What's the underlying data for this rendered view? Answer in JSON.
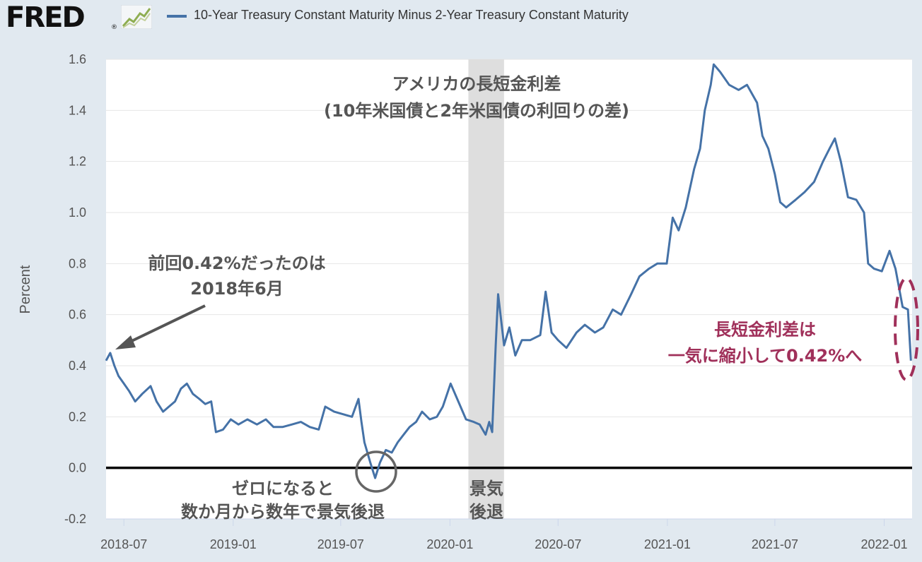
{
  "header": {
    "logo": "FRED",
    "logo_mark": "®",
    "legend_label": "10-Year Treasury Constant Maturity Minus 2-Year Treasury Constant Maturity",
    "legend_color": "#4572a7"
  },
  "annotations": {
    "title_line1": "アメリカの長短金利差",
    "title_line2": "(10年米国債と2年米国債の利回りの差)",
    "previous_line1": "前回0.42%だったのは",
    "previous_line2": "2018年6月",
    "zero_line1": "ゼロになると",
    "zero_line2": "数か月から数年で景気後退",
    "recession_line1": "景気",
    "recession_line2": "後退",
    "current_line1": "長短金利差は",
    "current_line2": "一気に縮小して0.42%へ",
    "current_color": "#a0305a"
  },
  "chart_data": {
    "type": "line",
    "ylabel": "Percent",
    "ylim": [
      -0.2,
      1.6
    ],
    "yticks": [
      "1.6",
      "1.4",
      "1.2",
      "1.0",
      "0.8",
      "0.6",
      "0.4",
      "0.2",
      "0.0",
      "-0.2"
    ],
    "xticks": [
      "2018-07",
      "2019-01",
      "2019-07",
      "2020-01",
      "2020-07",
      "2021-01",
      "2021-07",
      "2022-01"
    ],
    "recession_shading": [
      "2020-02",
      "2020-04"
    ],
    "series": [
      {
        "color": "#4572a7",
        "points": [
          [
            "2018-06-01",
            0.42
          ],
          [
            "2018-06-08",
            0.45
          ],
          [
            "2018-06-15",
            0.4
          ],
          [
            "2018-06-22",
            0.36
          ],
          [
            "2018-07-01",
            0.33
          ],
          [
            "2018-07-10",
            0.3
          ],
          [
            "2018-07-20",
            0.26
          ],
          [
            "2018-08-01",
            0.29
          ],
          [
            "2018-08-15",
            0.32
          ],
          [
            "2018-08-25",
            0.26
          ],
          [
            "2018-09-05",
            0.22
          ],
          [
            "2018-09-15",
            0.24
          ],
          [
            "2018-09-25",
            0.26
          ],
          [
            "2018-10-05",
            0.31
          ],
          [
            "2018-10-15",
            0.33
          ],
          [
            "2018-10-25",
            0.29
          ],
          [
            "2018-11-05",
            0.27
          ],
          [
            "2018-11-15",
            0.25
          ],
          [
            "2018-11-25",
            0.26
          ],
          [
            "2018-12-03",
            0.14
          ],
          [
            "2018-12-15",
            0.15
          ],
          [
            "2018-12-28",
            0.19
          ],
          [
            "2019-01-10",
            0.17
          ],
          [
            "2019-01-25",
            0.19
          ],
          [
            "2019-02-10",
            0.17
          ],
          [
            "2019-02-25",
            0.19
          ],
          [
            "2019-03-10",
            0.16
          ],
          [
            "2019-03-25",
            0.16
          ],
          [
            "2019-04-10",
            0.17
          ],
          [
            "2019-04-25",
            0.18
          ],
          [
            "2019-05-10",
            0.16
          ],
          [
            "2019-05-25",
            0.15
          ],
          [
            "2019-06-05",
            0.24
          ],
          [
            "2019-06-20",
            0.22
          ],
          [
            "2019-07-05",
            0.21
          ],
          [
            "2019-07-20",
            0.2
          ],
          [
            "2019-07-31",
            0.27
          ],
          [
            "2019-08-05",
            0.18
          ],
          [
            "2019-08-10",
            0.1
          ],
          [
            "2019-08-20",
            0.02
          ],
          [
            "2019-08-28",
            -0.04
          ],
          [
            "2019-09-05",
            0.02
          ],
          [
            "2019-09-15",
            0.07
          ],
          [
            "2019-09-25",
            0.06
          ],
          [
            "2019-10-05",
            0.1
          ],
          [
            "2019-10-15",
            0.13
          ],
          [
            "2019-10-25",
            0.16
          ],
          [
            "2019-11-05",
            0.18
          ],
          [
            "2019-11-15",
            0.22
          ],
          [
            "2019-11-28",
            0.19
          ],
          [
            "2019-12-10",
            0.2
          ],
          [
            "2019-12-20",
            0.24
          ],
          [
            "2020-01-02",
            0.33
          ],
          [
            "2020-01-15",
            0.26
          ],
          [
            "2020-01-28",
            0.19
          ],
          [
            "2020-02-10",
            0.18
          ],
          [
            "2020-02-20",
            0.17
          ],
          [
            "2020-03-01",
            0.13
          ],
          [
            "2020-03-07",
            0.18
          ],
          [
            "2020-03-12",
            0.14
          ],
          [
            "2020-03-18",
            0.48
          ],
          [
            "2020-03-22",
            0.68
          ],
          [
            "2020-04-01",
            0.48
          ],
          [
            "2020-04-10",
            0.55
          ],
          [
            "2020-04-20",
            0.44
          ],
          [
            "2020-05-01",
            0.5
          ],
          [
            "2020-05-15",
            0.5
          ],
          [
            "2020-06-01",
            0.52
          ],
          [
            "2020-06-10",
            0.69
          ],
          [
            "2020-06-20",
            0.53
          ],
          [
            "2020-07-01",
            0.5
          ],
          [
            "2020-07-15",
            0.47
          ],
          [
            "2020-08-01",
            0.53
          ],
          [
            "2020-08-15",
            0.56
          ],
          [
            "2020-09-01",
            0.53
          ],
          [
            "2020-09-15",
            0.55
          ],
          [
            "2020-10-01",
            0.62
          ],
          [
            "2020-10-15",
            0.6
          ],
          [
            "2020-11-01",
            0.68
          ],
          [
            "2020-11-15",
            0.75
          ],
          [
            "2020-12-01",
            0.78
          ],
          [
            "2020-12-15",
            0.8
          ],
          [
            "2020-12-31",
            0.8
          ],
          [
            "2021-01-10",
            0.98
          ],
          [
            "2021-01-20",
            0.93
          ],
          [
            "2021-02-01",
            1.02
          ],
          [
            "2021-02-15",
            1.17
          ],
          [
            "2021-02-25",
            1.25
          ],
          [
            "2021-03-05",
            1.4
          ],
          [
            "2021-03-15",
            1.5
          ],
          [
            "2021-03-20",
            1.58
          ],
          [
            "2021-03-31",
            1.55
          ],
          [
            "2021-04-15",
            1.5
          ],
          [
            "2021-05-01",
            1.48
          ],
          [
            "2021-05-15",
            1.5
          ],
          [
            "2021-06-01",
            1.43
          ],
          [
            "2021-06-10",
            1.3
          ],
          [
            "2021-06-20",
            1.25
          ],
          [
            "2021-07-01",
            1.15
          ],
          [
            "2021-07-10",
            1.04
          ],
          [
            "2021-07-20",
            1.02
          ],
          [
            "2021-08-05",
            1.05
          ],
          [
            "2021-08-20",
            1.08
          ],
          [
            "2021-09-05",
            1.12
          ],
          [
            "2021-09-20",
            1.2
          ],
          [
            "2021-10-01",
            1.25
          ],
          [
            "2021-10-10",
            1.29
          ],
          [
            "2021-10-20",
            1.2
          ],
          [
            "2021-11-01",
            1.06
          ],
          [
            "2021-11-15",
            1.05
          ],
          [
            "2021-11-28",
            1.0
          ],
          [
            "2021-12-05",
            0.8
          ],
          [
            "2021-12-15",
            0.78
          ],
          [
            "2021-12-28",
            0.77
          ],
          [
            "2022-01-10",
            0.85
          ],
          [
            "2022-01-20",
            0.78
          ],
          [
            "2022-02-01",
            0.63
          ],
          [
            "2022-02-10",
            0.62
          ],
          [
            "2022-02-15",
            0.42
          ]
        ]
      }
    ],
    "zero_line": 0.0
  }
}
